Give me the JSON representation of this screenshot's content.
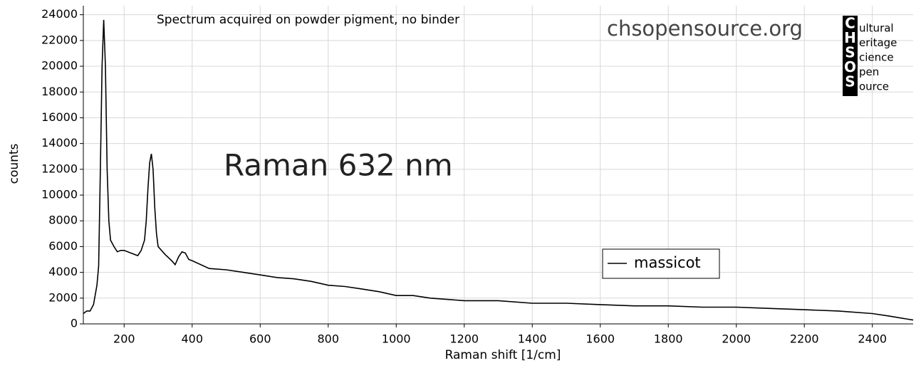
{
  "chart_data": {
    "type": "line",
    "title": "Raman 632 nm",
    "annotation": "Spectrum acquired on powder pigment, no binder",
    "watermark": "chsopensource.org",
    "logo": {
      "letters": [
        "C",
        "H",
        "S",
        "O",
        "S"
      ],
      "words": [
        "ultural",
        "eritage",
        "cience",
        "pen",
        "ource"
      ]
    },
    "x_label": "Raman shift [1/cm]",
    "y_label": "counts",
    "xlim": [
      80,
      2520
    ],
    "ylim": [
      0,
      24700
    ],
    "xticks": [
      200,
      400,
      600,
      800,
      1000,
      1200,
      1400,
      1600,
      1800,
      2000,
      2200,
      2400
    ],
    "yticks": [
      0,
      2000,
      4000,
      6000,
      8000,
      10000,
      12000,
      14000,
      16000,
      18000,
      20000,
      22000,
      24000
    ],
    "grid": true,
    "legend": "lower-right",
    "x": [
      80,
      90,
      100,
      110,
      120,
      125,
      130,
      135,
      140,
      145,
      150,
      155,
      160,
      170,
      180,
      190,
      200,
      220,
      240,
      250,
      260,
      265,
      270,
      275,
      280,
      285,
      290,
      295,
      300,
      320,
      340,
      350,
      360,
      370,
      380,
      390,
      400,
      450,
      500,
      550,
      600,
      650,
      700,
      750,
      800,
      850,
      900,
      950,
      1000,
      1050,
      1100,
      1200,
      1300,
      1400,
      1500,
      1600,
      1700,
      1800,
      1900,
      2000,
      2100,
      2200,
      2300,
      2400,
      2450,
      2520
    ],
    "series": [
      {
        "name": "massicot",
        "color": "#000000",
        "values": [
          800,
          1000,
          1000,
          1500,
          3000,
          4500,
          12000,
          20000,
          23600,
          20000,
          12000,
          8000,
          6500,
          6000,
          5600,
          5700,
          5700,
          5500,
          5300,
          5700,
          6500,
          8000,
          10500,
          12500,
          13200,
          12000,
          9000,
          7000,
          6000,
          5400,
          4900,
          4600,
          5200,
          5600,
          5500,
          5000,
          4900,
          4300,
          4200,
          4000,
          3800,
          3600,
          3500,
          3300,
          3000,
          2900,
          2700,
          2500,
          2200,
          2200,
          2000,
          1800,
          1800,
          1600,
          1600,
          1500,
          1400,
          1400,
          1300,
          1300,
          1200,
          1100,
          1000,
          800,
          600,
          300
        ]
      }
    ]
  }
}
